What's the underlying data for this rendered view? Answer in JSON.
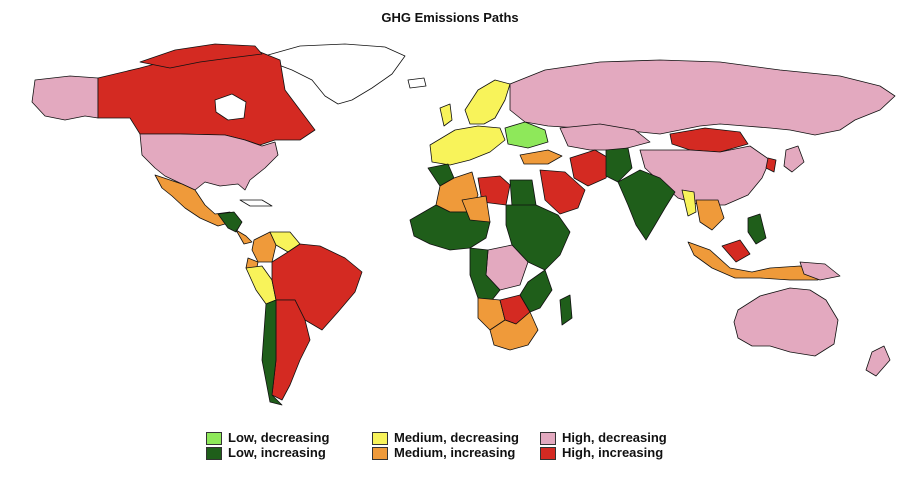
{
  "title": "GHG Emissions Paths",
  "colors": {
    "low_decreasing": "#8ee85a",
    "low_increasing": "#1f5e1a",
    "medium_decreasing": "#f8f35a",
    "medium_increasing": "#ef9a3a",
    "high_decreasing": "#e3a9bf",
    "high_increasing": "#d42a22",
    "no_data": "#ffffff",
    "border": "#111111"
  },
  "legend": [
    {
      "label": "Low, decreasing",
      "color_key": "low_decreasing"
    },
    {
      "label": "Low, increasing",
      "color_key": "low_increasing"
    },
    {
      "label": "Medium, decreasing",
      "color_key": "medium_decreasing"
    },
    {
      "label": "Medium, increasing",
      "color_key": "medium_increasing"
    },
    {
      "label": "High, decreasing",
      "color_key": "high_decreasing"
    },
    {
      "label": "High, increasing",
      "color_key": "high_increasing"
    }
  ]
}
